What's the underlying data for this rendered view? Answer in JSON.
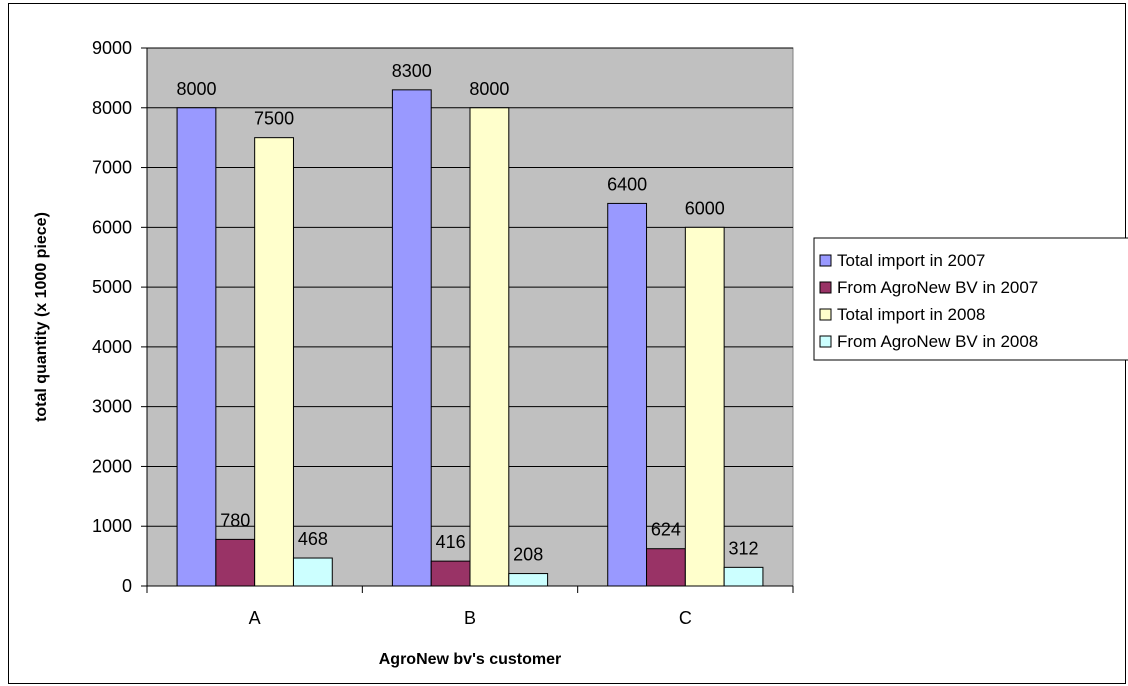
{
  "chart_data": {
    "type": "bar",
    "categories": [
      "A",
      "B",
      "C"
    ],
    "series": [
      {
        "name": "Total import in 2007",
        "color": "#9999ff",
        "values": [
          8000,
          8300,
          6400
        ]
      },
      {
        "name": "From AgroNew BV in 2007",
        "color": "#993366",
        "values": [
          780,
          416,
          624
        ]
      },
      {
        "name": "Total import in 2008",
        "color": "#ffffcc",
        "values": [
          7500,
          8000,
          6000
        ]
      },
      {
        "name": "From AgroNew BV in 2008",
        "color": "#ccffff",
        "values": [
          468,
          208,
          312
        ]
      }
    ],
    "xlabel": "AgroNew bv's customer",
    "ylabel": "total quantity (x 1000 piece)",
    "ylim": [
      0,
      9000
    ],
    "yticks": [
      0,
      1000,
      2000,
      3000,
      4000,
      5000,
      6000,
      7000,
      8000,
      9000
    ],
    "plot_background": "#c0c0c0",
    "grid": true,
    "legend_position": "right",
    "data_labels": true
  }
}
